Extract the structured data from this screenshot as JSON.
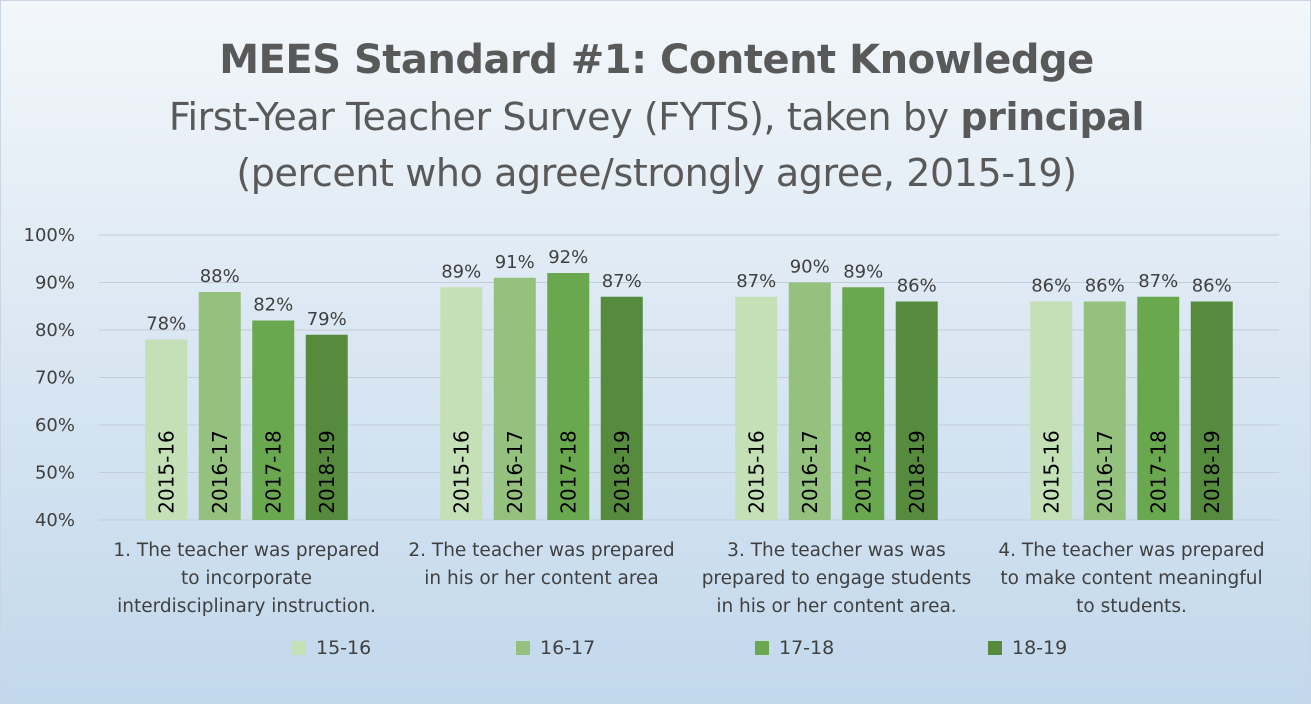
{
  "title": {
    "line1": "MEES Standard #1: Content Knowledge",
    "line2_prefix": "First-Year Teacher Survey (FYTS), taken by ",
    "line2_bold": "principal",
    "line3": "(percent who agree/strongly agree, 2015-19)"
  },
  "colors": [
    "#c5dfb7",
    "#95c17f",
    "#6aa84f",
    "#568a3c"
  ],
  "chart_data": {
    "type": "bar",
    "title": "MEES Standard #1: Content Knowledge",
    "subtitle": "First-Year Teacher Survey (FYTS), taken by principal (percent who agree/strongly agree, 2015-19)",
    "ylim": [
      40,
      100
    ],
    "yticks": [
      "40%",
      "50%",
      "60%",
      "70%",
      "80%",
      "90%",
      "100%"
    ],
    "grid": true,
    "legend_position": "bottom",
    "categories": [
      [
        "1. The teacher was prepared",
        "to incorporate",
        "interdisciplinary instruction."
      ],
      [
        "2. The teacher was prepared",
        "in his or her content area"
      ],
      [
        "3. The teacher was was",
        "prepared to engage students",
        "in his or her content area."
      ],
      [
        "4. The teacher was prepared",
        "to make content meaningful",
        "to students."
      ]
    ],
    "series": [
      {
        "name": "15-16",
        "bar_label": "2015-16",
        "values": [
          78,
          89,
          87,
          86
        ]
      },
      {
        "name": "16-17",
        "bar_label": "2016-17",
        "values": [
          88,
          91,
          90,
          86
        ]
      },
      {
        "name": "17-18",
        "bar_label": "2017-18",
        "values": [
          82,
          92,
          89,
          87
        ]
      },
      {
        "name": "18-19",
        "bar_label": "2018-19",
        "values": [
          79,
          87,
          86,
          86
        ]
      }
    ]
  }
}
